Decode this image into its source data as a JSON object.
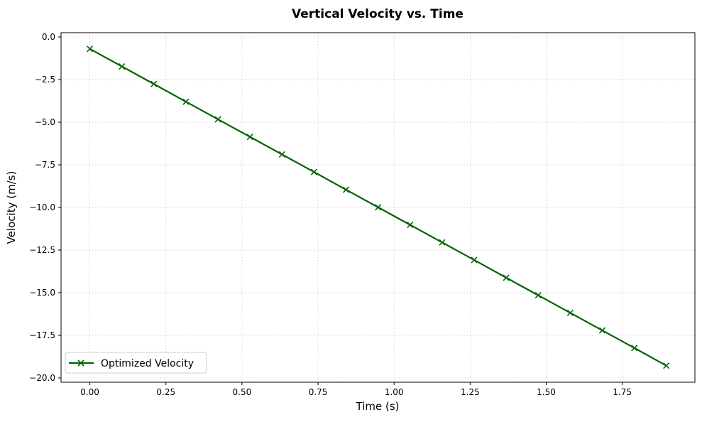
{
  "chart_data": {
    "type": "line",
    "title": "Vertical Velocity vs. Time",
    "xlabel": "Time (s)",
    "ylabel": "Velocity (m/s)",
    "xlim": [
      -0.0947,
      1.9887
    ],
    "ylim": [
      -20.25,
      0.25
    ],
    "x_ticks": [
      "0.00",
      "0.25",
      "0.50",
      "0.75",
      "1.00",
      "1.25",
      "1.50",
      "1.75"
    ],
    "y_ticks": [
      "0.0",
      "−2.5",
      "−5.0",
      "−7.5",
      "−10.0",
      "−12.5",
      "−15.0",
      "−17.5",
      "−20.0"
    ],
    "grid": true,
    "legend_position": "lower-left",
    "series": [
      {
        "name": "Optimized Velocity",
        "color": "#006400",
        "marker": "x",
        "x": [
          0.0,
          0.1053,
          0.2105,
          0.3158,
          0.4211,
          0.5263,
          0.6316,
          0.7368,
          0.8421,
          0.9474,
          1.0526,
          1.1579,
          1.2632,
          1.3684,
          1.4737,
          1.5789,
          1.6842,
          1.7895,
          1.8947
        ],
        "values": [
          -0.7,
          -1.73,
          -2.76,
          -3.8,
          -4.83,
          -5.86,
          -6.89,
          -7.92,
          -8.96,
          -9.99,
          -11.02,
          -12.05,
          -13.08,
          -14.12,
          -15.15,
          -16.18,
          -17.21,
          -18.24,
          -19.28
        ]
      }
    ]
  }
}
